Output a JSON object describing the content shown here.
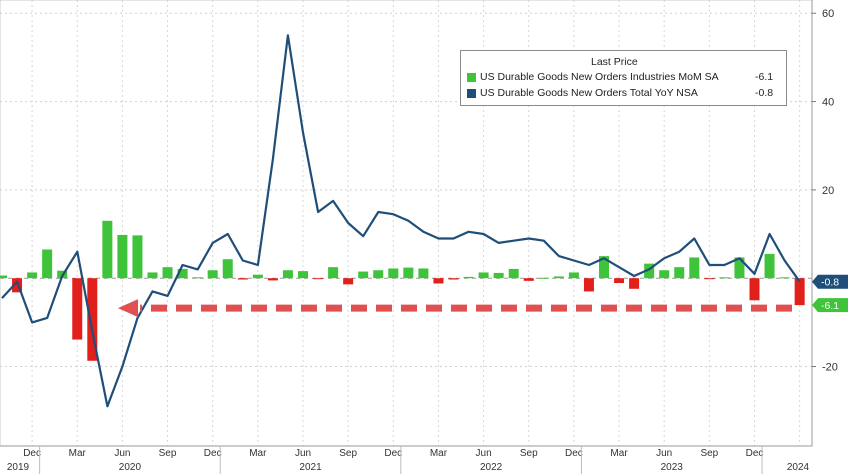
{
  "chart_data": {
    "type": "bar+line",
    "title": "",
    "ylim": [
      -38,
      63
    ],
    "yticks": [
      60,
      40,
      20,
      -20
    ],
    "start_month": "2019-10",
    "end_month": "2024-01",
    "x_month_labels": [
      "Dec",
      "Mar",
      "Jun",
      "Sep",
      "Dec",
      "Mar",
      "Jun",
      "Sep",
      "Dec",
      "Mar",
      "Jun",
      "Sep",
      "Dec",
      "Mar",
      "Jun",
      "Sep",
      "Dec"
    ],
    "x_year_labels": [
      "2019",
      "2020",
      "2021",
      "2022",
      "2023",
      "2024"
    ],
    "legend_header": "Last Price",
    "colors": {
      "positive_bar": "#3fc33a",
      "negative_bar": "#e1201b",
      "line": "#1f4e79",
      "arrow": "#e05050"
    },
    "series": [
      {
        "name": "US Durable Goods New Orders Industries MoM SA",
        "kind": "bar",
        "last_value_label": "-6.1",
        "values": [
          0.6,
          -3.2,
          1.3,
          6.5,
          1.7,
          -13.9,
          -18.7,
          13.0,
          9.8,
          9.7,
          1.3,
          2.5,
          2.1,
          0.2,
          1.8,
          4.3,
          -0.3,
          0.8,
          -0.5,
          1.8,
          1.6,
          -0.1,
          2.5,
          -1.4,
          1.5,
          1.8,
          2.2,
          2.4,
          2.2,
          -1.2,
          -0.3,
          0.3,
          1.3,
          1.2,
          2.1,
          -0.6,
          0.1,
          0.4,
          1.3,
          -3.0,
          5.0,
          -1.1,
          -2.4,
          3.3,
          1.8,
          2.5,
          4.7,
          -0.1,
          0.2,
          4.7,
          -5.0,
          5.5,
          0.2,
          -6.1
        ]
      },
      {
        "name": "US Durable Goods New Orders Total YoY NSA",
        "kind": "line",
        "last_value_label": "-0.8",
        "values": [
          -4.5,
          -0.8,
          -10.0,
          -9.0,
          0.5,
          6.0,
          -12.0,
          -29.0,
          -20.0,
          -9.0,
          -3.0,
          -4.0,
          3.0,
          2.0,
          8.0,
          10.0,
          4.0,
          3.0,
          27.0,
          55.0,
          33.0,
          15.0,
          17.5,
          12.5,
          9.5,
          15.0,
          14.5,
          13.0,
          10.5,
          9.0,
          9.0,
          10.5,
          10.0,
          8.0,
          8.5,
          9.0,
          8.5,
          5.0,
          4.0,
          3.0,
          4.5,
          2.5,
          0.5,
          2.0,
          4.5,
          6.0,
          9.0,
          3.0,
          3.0,
          4.5,
          1.0,
          10.0,
          4.0,
          -0.8
        ]
      }
    ],
    "grid": true,
    "legend_position": "top-right",
    "annotation": "dashed red arrow pointing left at the latest bar level"
  }
}
